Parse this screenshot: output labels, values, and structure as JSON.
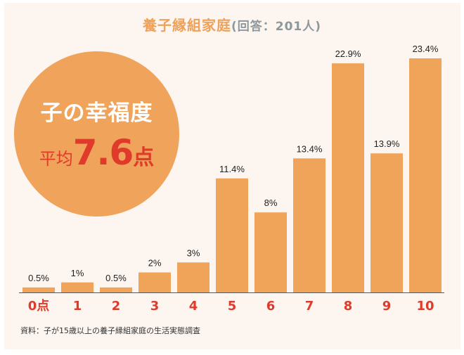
{
  "title": {
    "main": "養子縁組家庭",
    "sub": "(回答：201人)"
  },
  "badge": {
    "title": "子の幸福度",
    "avg_label": "平均",
    "avg_value": "7.6",
    "avg_unit": "点"
  },
  "source": "資料：子が15歳以上の養子縁組家庭の生活実態調査",
  "colors": {
    "bar": "#f0a45a",
    "tick": "#e03a2b",
    "title": "#eea158",
    "axis": "#555555"
  },
  "chart_data": {
    "type": "bar",
    "title": "養子縁組家庭(回答：201人)",
    "categories": [
      "0点",
      "1",
      "2",
      "3",
      "4",
      "5",
      "6",
      "7",
      "8",
      "9",
      "10"
    ],
    "values": [
      0.5,
      1,
      0.5,
      2,
      3,
      11.4,
      8,
      13.4,
      22.9,
      13.9,
      23.4
    ],
    "data_labels": [
      "0.5%",
      "1%",
      "0.5%",
      "2%",
      "3%",
      "11.4%",
      "8%",
      "13.4%",
      "22.9%",
      "13.9%",
      "23.4%"
    ],
    "unit": "%",
    "ylim": [
      0,
      23.4
    ],
    "grid": false
  }
}
